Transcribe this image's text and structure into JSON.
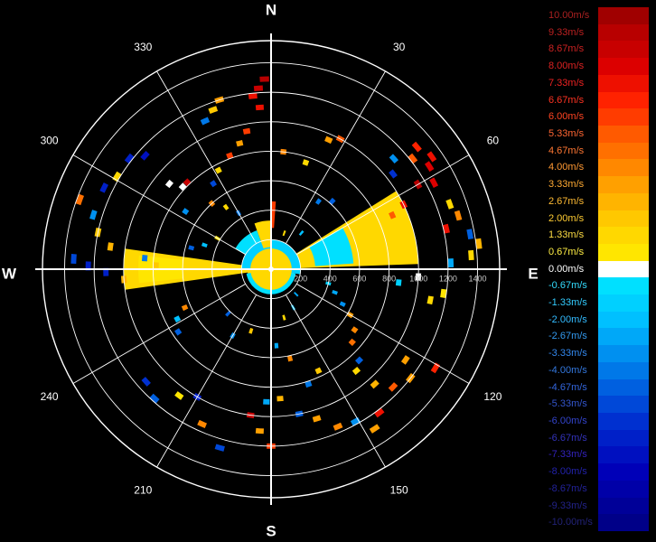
{
  "chart_data": {
    "type": "polar-radar",
    "compass": {
      "north": "N",
      "east": "E",
      "south": "S",
      "west": "W"
    },
    "azimuth_labels": [
      "30",
      "60",
      "120",
      "150",
      "210",
      "240",
      "300",
      "330"
    ],
    "azimuths_deg": [
      30,
      60,
      120,
      150,
      210,
      240,
      300,
      330
    ],
    "range_labels": [
      "200",
      "400",
      "600",
      "800",
      "1000",
      "1200",
      "1400"
    ],
    "ranges": [
      200,
      400,
      600,
      800,
      1000,
      1200,
      1400
    ],
    "range_max": 1550,
    "range_label_color": "#c8c8c8",
    "grid_color": "#ffffff",
    "colorbar": {
      "min": -10.0,
      "max": 10.0,
      "unit": "m/s",
      "labels": [
        "10.00m/s",
        "9.33m/s",
        "8.67m/s",
        "8.00m/s",
        "7.33m/s",
        "6.67m/s",
        "6.00m/s",
        "5.33m/s",
        "4.67m/s",
        "4.00m/s",
        "3.33m/s",
        "2.67m/s",
        "2.00m/s",
        "1.33m/s",
        "0.67m/s",
        "0.00m/s",
        "-0.67m/s",
        "-1.33m/s",
        "-2.00m/s",
        "-2.67m/s",
        "-3.33m/s",
        "-4.00m/s",
        "-4.67m/s",
        "-5.33m/s",
        "-6.00m/s",
        "-6.67m/s",
        "-7.33m/s",
        "-8.00m/s",
        "-8.67m/s",
        "-9.33m/s",
        "-10.00m/s"
      ],
      "values": [
        10.0,
        9.33,
        8.67,
        8.0,
        7.33,
        6.67,
        6.0,
        5.33,
        4.67,
        4.0,
        3.33,
        2.67,
        2.0,
        1.33,
        0.67,
        0.0,
        -0.67,
        -1.33,
        -2.0,
        -2.67,
        -3.33,
        -4.0,
        -4.67,
        -5.33,
        -6.0,
        -6.67,
        -7.33,
        -8.0,
        -8.67,
        -9.33,
        -10.0
      ],
      "colors": [
        "#a00000",
        "#b80000",
        "#c80000",
        "#dc0000",
        "#ee1000",
        "#ff2200",
        "#ff3c00",
        "#ff5a00",
        "#ff7000",
        "#ff8800",
        "#ffa000",
        "#ffb400",
        "#ffc800",
        "#ffd800",
        "#ffe600",
        "#ffffff",
        "#00e0ff",
        "#00d0ff",
        "#00c0ff",
        "#00a8f8",
        "#0090f0",
        "#0078e8",
        "#0060e0",
        "#0048d8",
        "#0030d0",
        "#0020c8",
        "#0010c0",
        "#0000b8",
        "#0000a8",
        "#000098",
        "#000088"
      ],
      "label_colors": [
        "#aa2020",
        "#bb2020",
        "#cc2222",
        "#dd2222",
        "#ee2222",
        "#ff3322",
        "#ff4422",
        "#ff6633",
        "#ff7733",
        "#ff9933",
        "#ffaa33",
        "#ffbb33",
        "#ffcc33",
        "#ffdd44",
        "#ffee44",
        "#ffffff",
        "#33ddff",
        "#33ccff",
        "#33bbff",
        "#3399ee",
        "#3388ee",
        "#3377dd",
        "#3366dd",
        "#3355cc",
        "#3344cc",
        "#3333bb",
        "#3322bb",
        "#2222aa",
        "#222299",
        "#222288",
        "#222277"
      ]
    },
    "echo_regions": [
      {
        "az": [
          58,
          88
        ],
        "r": [
          120,
          1000
        ],
        "v": 1.1
      },
      {
        "az": [
          60,
          86
        ],
        "r": [
          300,
          560
        ],
        "v": -0.5
      },
      {
        "az": [
          262,
          278
        ],
        "r": [
          120,
          1000
        ],
        "v": 1.1
      },
      {
        "az": [
          264,
          276
        ],
        "r": [
          600,
          900
        ],
        "v": 0.8
      },
      {
        "az": [
          0,
          360
        ],
        "r": [
          0,
          160
        ],
        "v": 1.4
      },
      {
        "az": [
          270,
          360
        ],
        "r": [
          140,
          200
        ],
        "v": -1.6
      },
      {
        "az": [
          0,
          100
        ],
        "r": [
          140,
          200
        ],
        "v": -1.4
      },
      {
        "az": [
          100,
          260
        ],
        "r": [
          140,
          170
        ],
        "v": -1.0
      },
      {
        "az": [
          300,
          340
        ],
        "r": [
          200,
          280
        ],
        "v": -1.0
      },
      {
        "az": [
          340,
          360
        ],
        "r": [
          150,
          330
        ],
        "v": 1.6
      },
      {
        "az": [
          0,
          4
        ],
        "r": [
          280,
          460
        ],
        "v": 5.8
      }
    ],
    "echo_gates": [
      {
        "az": 358,
        "r": 1290,
        "v": 9.3
      },
      {
        "az": 356,
        "r": 1230,
        "v": 8.4
      },
      {
        "az": 354,
        "r": 1180,
        "v": 7.0
      },
      {
        "az": 343,
        "r": 1200,
        "v": 3.0
      },
      {
        "az": 340,
        "r": 1150,
        "v": 2.3
      },
      {
        "az": 336,
        "r": 1100,
        "v": -3.8
      },
      {
        "az": 350,
        "r": 950,
        "v": 5.8
      },
      {
        "az": 346,
        "r": 880,
        "v": 3.5
      },
      {
        "az": 340,
        "r": 820,
        "v": 6.0
      },
      {
        "az": 332,
        "r": 760,
        "v": 1.4
      },
      {
        "az": 326,
        "r": 700,
        "v": -5.5
      },
      {
        "az": 356,
        "r": 1100,
        "v": 7.5
      },
      {
        "az": 312,
        "r": 1150,
        "v": -7.5
      },
      {
        "az": 308,
        "r": 1220,
        "v": -6.5
      },
      {
        "az": 301,
        "r": 1220,
        "v": 1.6
      },
      {
        "az": 296,
        "r": 1260,
        "v": -6.8
      },
      {
        "az": 290,
        "r": 1380,
        "v": 4.5
      },
      {
        "az": 287,
        "r": 1260,
        "v": -3.5
      },
      {
        "az": 310,
        "r": 900,
        "v": 0.0
      },
      {
        "az": 313,
        "r": 820,
        "v": 0.0
      },
      {
        "az": 316,
        "r": 820,
        "v": 8.6
      },
      {
        "az": 304,
        "r": 700,
        "v": -3.2
      },
      {
        "az": 282,
        "r": 1200,
        "v": 1.8
      },
      {
        "az": 278,
        "r": 1100,
        "v": 2.5
      },
      {
        "az": 273,
        "r": 1340,
        "v": -5.5
      },
      {
        "az": 271,
        "r": 1240,
        "v": -7.0
      },
      {
        "az": 269,
        "r": 1120,
        "v": -6.5
      },
      {
        "az": 266,
        "r": 1000,
        "v": 2.5
      },
      {
        "az": 275,
        "r": 860,
        "v": -4.0
      },
      {
        "az": 272,
        "r": 780,
        "v": 2.0
      },
      {
        "az": 285,
        "r": 560,
        "v": -4.5
      },
      {
        "az": 290,
        "r": 480,
        "v": -2.0
      },
      {
        "az": 300,
        "r": 420,
        "v": 1.0
      },
      {
        "az": 318,
        "r": 600,
        "v": 4.0
      },
      {
        "az": 324,
        "r": 520,
        "v": 1.2
      },
      {
        "az": 330,
        "r": 440,
        "v": -4.0
      },
      {
        "az": 6,
        "r": 800,
        "v": 4.0
      },
      {
        "az": 18,
        "r": 760,
        "v": 1.6
      },
      {
        "az": 24,
        "r": 960,
        "v": 3.0
      },
      {
        "az": 28,
        "r": 1000,
        "v": 5.5
      },
      {
        "az": 35,
        "r": 560,
        "v": -4.0
      },
      {
        "az": 42,
        "r": 620,
        "v": -5.0
      },
      {
        "az": 50,
        "r": 1290,
        "v": 6.8
      },
      {
        "az": 52,
        "r": 1220,
        "v": 5.5
      },
      {
        "az": 55,
        "r": 1330,
        "v": 7.0
      },
      {
        "az": 57,
        "r": 1280,
        "v": 8.0
      },
      {
        "az": 60,
        "r": 1150,
        "v": 9.0
      },
      {
        "az": 62,
        "r": 1250,
        "v": 8.3
      },
      {
        "az": 64,
        "r": 1000,
        "v": 7.0
      },
      {
        "az": 66,
        "r": 900,
        "v": 5.0
      },
      {
        "az": 52,
        "r": 1050,
        "v": -6.0
      },
      {
        "az": 48,
        "r": 1120,
        "v": -3.5
      },
      {
        "az": 70,
        "r": 1290,
        "v": 1.2
      },
      {
        "az": 74,
        "r": 1320,
        "v": 4.0
      },
      {
        "az": 77,
        "r": 1220,
        "v": 7.0
      },
      {
        "az": 80,
        "r": 1370,
        "v": -5.0
      },
      {
        "az": 83,
        "r": 1420,
        "v": 2.5
      },
      {
        "az": 86,
        "r": 1360,
        "v": 1.5
      },
      {
        "az": 88,
        "r": 1220,
        "v": -2.5
      },
      {
        "az": 93,
        "r": 1000,
        "v": 0.0
      },
      {
        "az": 96,
        "r": 870,
        "v": -1.5
      },
      {
        "az": 98,
        "r": 1180,
        "v": 0.5
      },
      {
        "az": 101,
        "r": 1100,
        "v": 1.1
      },
      {
        "az": 104,
        "r": 400,
        "v": -1.5
      },
      {
        "az": 110,
        "r": 460,
        "v": -2.5
      },
      {
        "az": 116,
        "r": 540,
        "v": -3.5
      },
      {
        "az": 120,
        "r": 620,
        "v": 3.0
      },
      {
        "az": 126,
        "r": 700,
        "v": 4.2
      },
      {
        "az": 132,
        "r": 740,
        "v": 4.8
      },
      {
        "az": 136,
        "r": 860,
        "v": -5.0
      },
      {
        "az": 140,
        "r": 900,
        "v": 1.5
      },
      {
        "az": 124,
        "r": 1100,
        "v": 3.5
      },
      {
        "az": 121,
        "r": 1300,
        "v": 6.5
      },
      {
        "az": 128,
        "r": 1200,
        "v": 3.0
      },
      {
        "az": 134,
        "r": 1150,
        "v": 5.0
      },
      {
        "az": 138,
        "r": 1050,
        "v": 2.5
      },
      {
        "az": 143,
        "r": 1220,
        "v": 7.5
      },
      {
        "az": 147,
        "r": 1290,
        "v": 3.6
      },
      {
        "az": 151,
        "r": 1180,
        "v": -3.2
      },
      {
        "az": 157,
        "r": 1160,
        "v": 4.0
      },
      {
        "az": 163,
        "r": 1060,
        "v": 3.0
      },
      {
        "az": 169,
        "r": 1000,
        "v": -5.0
      },
      {
        "az": 176,
        "r": 880,
        "v": 2.5
      },
      {
        "az": 162,
        "r": 820,
        "v": -4.0
      },
      {
        "az": 155,
        "r": 760,
        "v": 1.8
      },
      {
        "az": 168,
        "r": 620,
        "v": 4.0
      },
      {
        "az": 176,
        "r": 520,
        "v": -2.5
      },
      {
        "az": 182,
        "r": 900,
        "v": -3.0
      },
      {
        "az": 180,
        "r": 1200,
        "v": 6.0
      },
      {
        "az": 184,
        "r": 1100,
        "v": 3.5
      },
      {
        "az": 188,
        "r": 1000,
        "v": 8.5
      },
      {
        "az": 196,
        "r": 1260,
        "v": -5.5
      },
      {
        "az": 204,
        "r": 1150,
        "v": 4.0
      },
      {
        "az": 210,
        "r": 1000,
        "v": -6.5
      },
      {
        "az": 216,
        "r": 1060,
        "v": 0.5
      },
      {
        "az": 222,
        "r": 1180,
        "v": -5.0
      },
      {
        "az": 228,
        "r": 1140,
        "v": -6.0
      },
      {
        "az": 236,
        "r": 760,
        "v": -4.5
      },
      {
        "az": 242,
        "r": 720,
        "v": -2.0
      },
      {
        "az": 246,
        "r": 640,
        "v": 4.0
      },
      {
        "az": 210,
        "r": 520,
        "v": -3.5
      },
      {
        "az": 198,
        "r": 440,
        "v": 2.0
      },
      {
        "az": 224,
        "r": 420,
        "v": -4.5
      },
      {
        "az": 40,
        "r": 320,
        "v": -2.0
      },
      {
        "az": 20,
        "r": 260,
        "v": 1.4
      },
      {
        "az": 150,
        "r": 300,
        "v": -2.0
      },
      {
        "az": 135,
        "r": 240,
        "v": -3.0
      },
      {
        "az": 165,
        "r": 340,
        "v": 1.2
      }
    ]
  }
}
